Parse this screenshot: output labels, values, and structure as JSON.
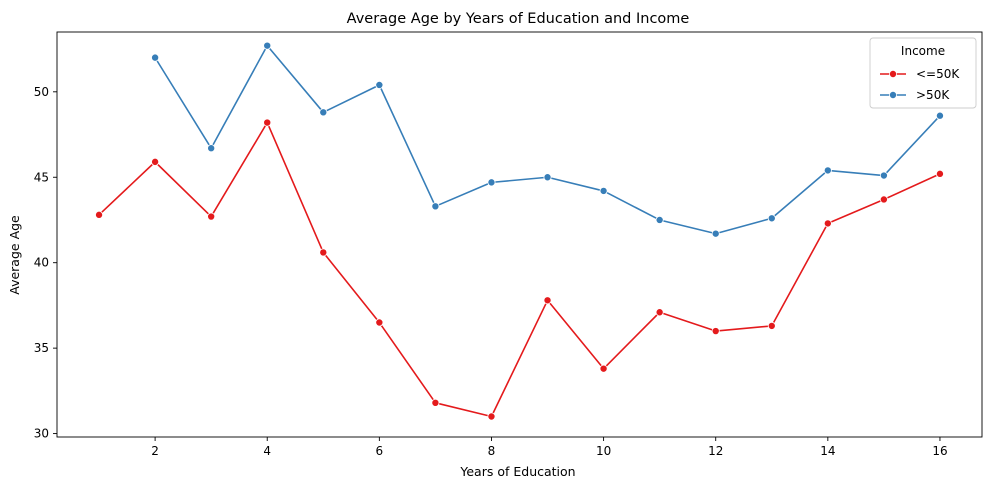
{
  "chart_data": {
    "type": "line",
    "title": "Average Age by Years of Education and Income",
    "xlabel": "Years of Education",
    "ylabel": "Average Age",
    "xlim": [
      0.25,
      16.75
    ],
    "ylim": [
      29.8,
      53.5
    ],
    "xticks": [
      2,
      4,
      6,
      8,
      10,
      12,
      14,
      16
    ],
    "yticks": [
      30,
      35,
      40,
      45,
      50
    ],
    "grid": false,
    "legend": {
      "title": "Income",
      "placement": "top-right"
    },
    "series": [
      {
        "name": "<=50K",
        "color": "#e41a1c",
        "x": [
          1,
          2,
          3,
          4,
          5,
          6,
          7,
          8,
          9,
          10,
          11,
          12,
          13,
          14,
          15,
          16
        ],
        "y": [
          42.8,
          45.9,
          42.7,
          48.2,
          40.6,
          36.5,
          31.8,
          31.0,
          37.8,
          33.8,
          37.1,
          36.0,
          36.3,
          42.3,
          43.7,
          45.2
        ]
      },
      {
        "name": ">50K",
        "color": "#377eb8",
        "x": [
          2,
          3,
          4,
          5,
          6,
          7,
          8,
          9,
          10,
          11,
          12,
          13,
          14,
          15,
          16
        ],
        "y": [
          52.0,
          46.7,
          52.7,
          48.8,
          50.4,
          43.3,
          44.7,
          45.0,
          44.2,
          42.5,
          41.7,
          42.6,
          45.4,
          45.1,
          48.6
        ]
      }
    ]
  }
}
